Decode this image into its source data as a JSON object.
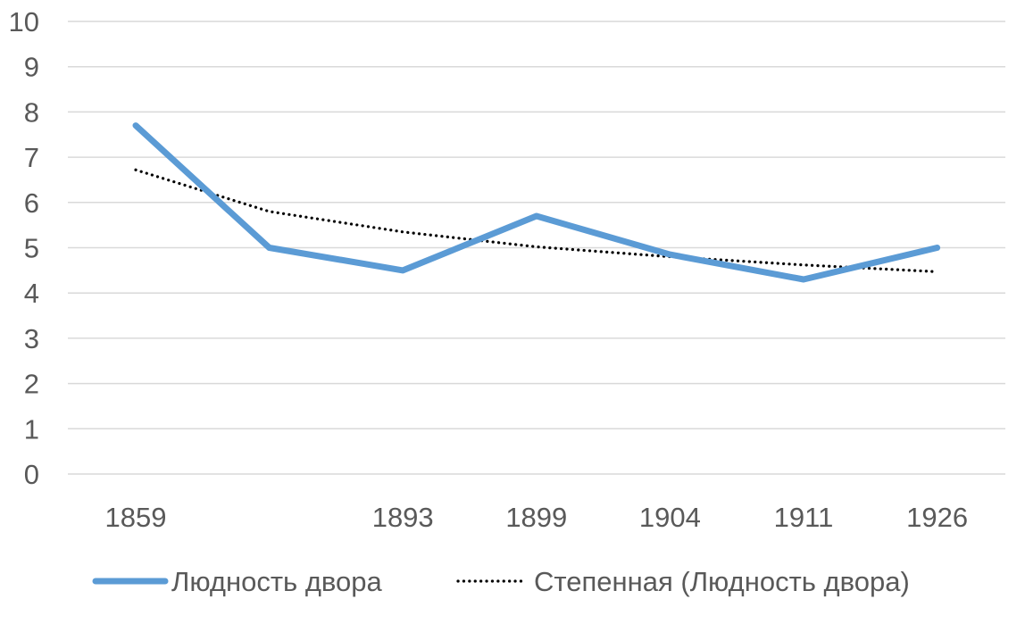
{
  "chart_data": {
    "type": "line",
    "title": "",
    "xlabel": "",
    "ylabel": "",
    "ylim": [
      0,
      10
    ],
    "y_ticks": [
      "0",
      "1",
      "2",
      "3",
      "4",
      "5",
      "6",
      "7",
      "8",
      "9",
      "10"
    ],
    "grid": true,
    "legend_position": "bottom",
    "categories": [
      "1859",
      "",
      "1893",
      "1899",
      "1904",
      "1911",
      "1926"
    ],
    "series": [
      {
        "name": "Людность двора",
        "values": [
          7.7,
          5.0,
          4.5,
          5.7,
          4.85,
          4.3,
          5.0
        ],
        "color": "#5b9bd5",
        "style": "solid"
      },
      {
        "name": "Степенная (Людность двора)",
        "values": [
          6.72,
          5.8,
          5.35,
          5.02,
          4.8,
          4.62,
          4.47
        ],
        "color": "#000000",
        "style": "dotted"
      }
    ]
  }
}
